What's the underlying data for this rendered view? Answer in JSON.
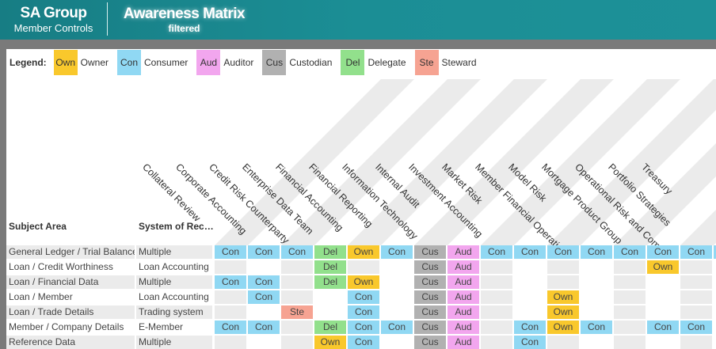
{
  "header": {
    "brand_title": "SA Group",
    "brand_subtitle": "Member Controls",
    "page_title": "Awareness Matrix",
    "page_subtitle": "filtered"
  },
  "legend": {
    "label": "Legend:",
    "items": [
      {
        "code": "Own",
        "name": "Owner",
        "color": "#f9c82c"
      },
      {
        "code": "Con",
        "name": "Consumer",
        "color": "#90d8f3"
      },
      {
        "code": "Aud",
        "name": "Auditor",
        "color": "#f2a6ee"
      },
      {
        "code": "Cus",
        "name": "Custodian",
        "color": "#b1b1b1"
      },
      {
        "code": "Del",
        "name": "Delegate",
        "color": "#92e08c"
      },
      {
        "code": "Ste",
        "name": "Steward",
        "color": "#f6a392"
      }
    ]
  },
  "table": {
    "subject_header": "Subject Area",
    "system_header": "System of Rec…",
    "columns": [
      "Collateral Review",
      "Corporate Accounting",
      "Credit Risk Counterparty",
      "Enterprise Data Team",
      "Financial Accounting",
      "Financial Reporting",
      "Information Technology",
      "Internal Audit",
      "Investment Accounting",
      "Market Risk",
      "Member Financial Operations",
      "Model Risk",
      "Mortgage Product Group",
      "Operational Risk and Compliance",
      "Portfolio Strategies",
      "Treasury"
    ],
    "rows": [
      {
        "subject": "General Ledger / Trial Balance",
        "system": "Multiple",
        "cells": [
          "Con",
          "Con",
          "Con",
          "Del",
          "Own",
          "Con",
          "Cus",
          "Aud",
          "Con",
          "Con",
          "Con",
          "Con",
          "Con",
          "Con",
          "Con",
          "Con"
        ]
      },
      {
        "subject": "Loan / Credit Worthiness",
        "system": "Loan Accounting",
        "cells": [
          "",
          "",
          "",
          "Del",
          "",
          "",
          "Cus",
          "Aud",
          "",
          "",
          "",
          "",
          "",
          "Own",
          "",
          ""
        ]
      },
      {
        "subject": "Loan / Financial Data",
        "system": "Multiple",
        "cells": [
          "Con",
          "Con",
          "",
          "Del",
          "Own",
          "",
          "Cus",
          "Aud",
          "",
          "",
          "",
          "",
          "",
          "",
          "",
          ""
        ]
      },
      {
        "subject": "Loan / Member",
        "system": "Loan Accounting",
        "cells": [
          "",
          "Con",
          "",
          "",
          "Con",
          "",
          "Cus",
          "Aud",
          "",
          "",
          "Own",
          "",
          "",
          "",
          "",
          ""
        ]
      },
      {
        "subject": "Loan / Trade Details",
        "system": "Trading system",
        "cells": [
          "",
          "",
          "Ste",
          "",
          "Con",
          "",
          "Cus",
          "Aud",
          "",
          "",
          "Own",
          "",
          "",
          "",
          "",
          ""
        ]
      },
      {
        "subject": "Member / Company Details",
        "system": "E-Member",
        "cells": [
          "Con",
          "Con",
          "",
          "Del",
          "Con",
          "Con",
          "Cus",
          "Aud",
          "",
          "Con",
          "Own",
          "Con",
          "",
          "Con",
          "Con",
          ""
        ]
      },
      {
        "subject": "Reference Data",
        "system": "Multiple",
        "cells": [
          "",
          "",
          "",
          "Own",
          "Con",
          "",
          "Cus",
          "Aud",
          "",
          "Con",
          "",
          "",
          "",
          "",
          "",
          ""
        ]
      }
    ]
  }
}
